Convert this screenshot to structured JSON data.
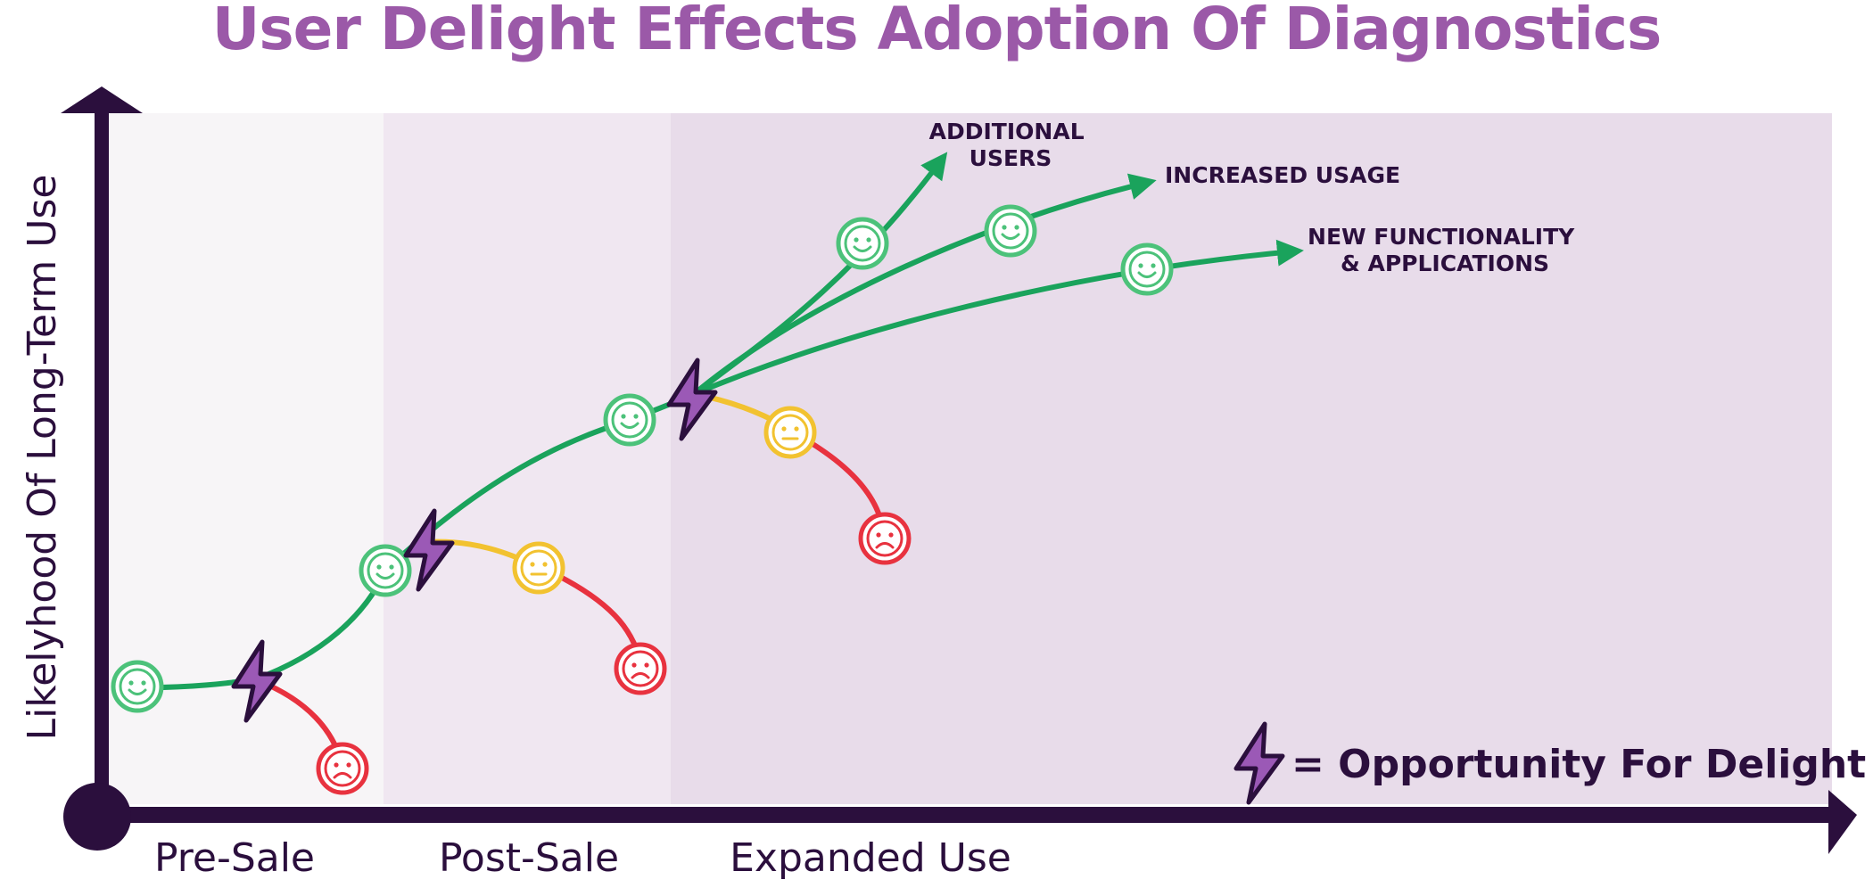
{
  "title": "User Delight Effects Adoption Of Diagnostics",
  "y_axis_label": "Likelyhood Of Long-Term Use",
  "phases": [
    "Pre-Sale",
    "Post-Sale",
    "Expanded Use"
  ],
  "branch_labels": {
    "additional_users": [
      "ADDITIONAL",
      "USERS"
    ],
    "increased_usage": [
      "INCREASED USAGE"
    ],
    "new_functionality": [
      "NEW FUNCTIONALITY",
      "& APPLICATIONS"
    ]
  },
  "legend": {
    "icon": "lightning-bolt-icon",
    "text": "= Opportunity For Delight"
  },
  "colors": {
    "title": "#9b59a8",
    "axis": "#2b0f3d",
    "positive": "#1aa35c",
    "neutral": "#f2c230",
    "negative": "#e8323f",
    "bolt_fill": "#9b59b6",
    "bolt_stroke": "#2b0f3d",
    "phase_presale": "#f7f5f7",
    "phase_postsale": "#f0e7f1",
    "phase_expanded": "#e8dcea"
  }
}
